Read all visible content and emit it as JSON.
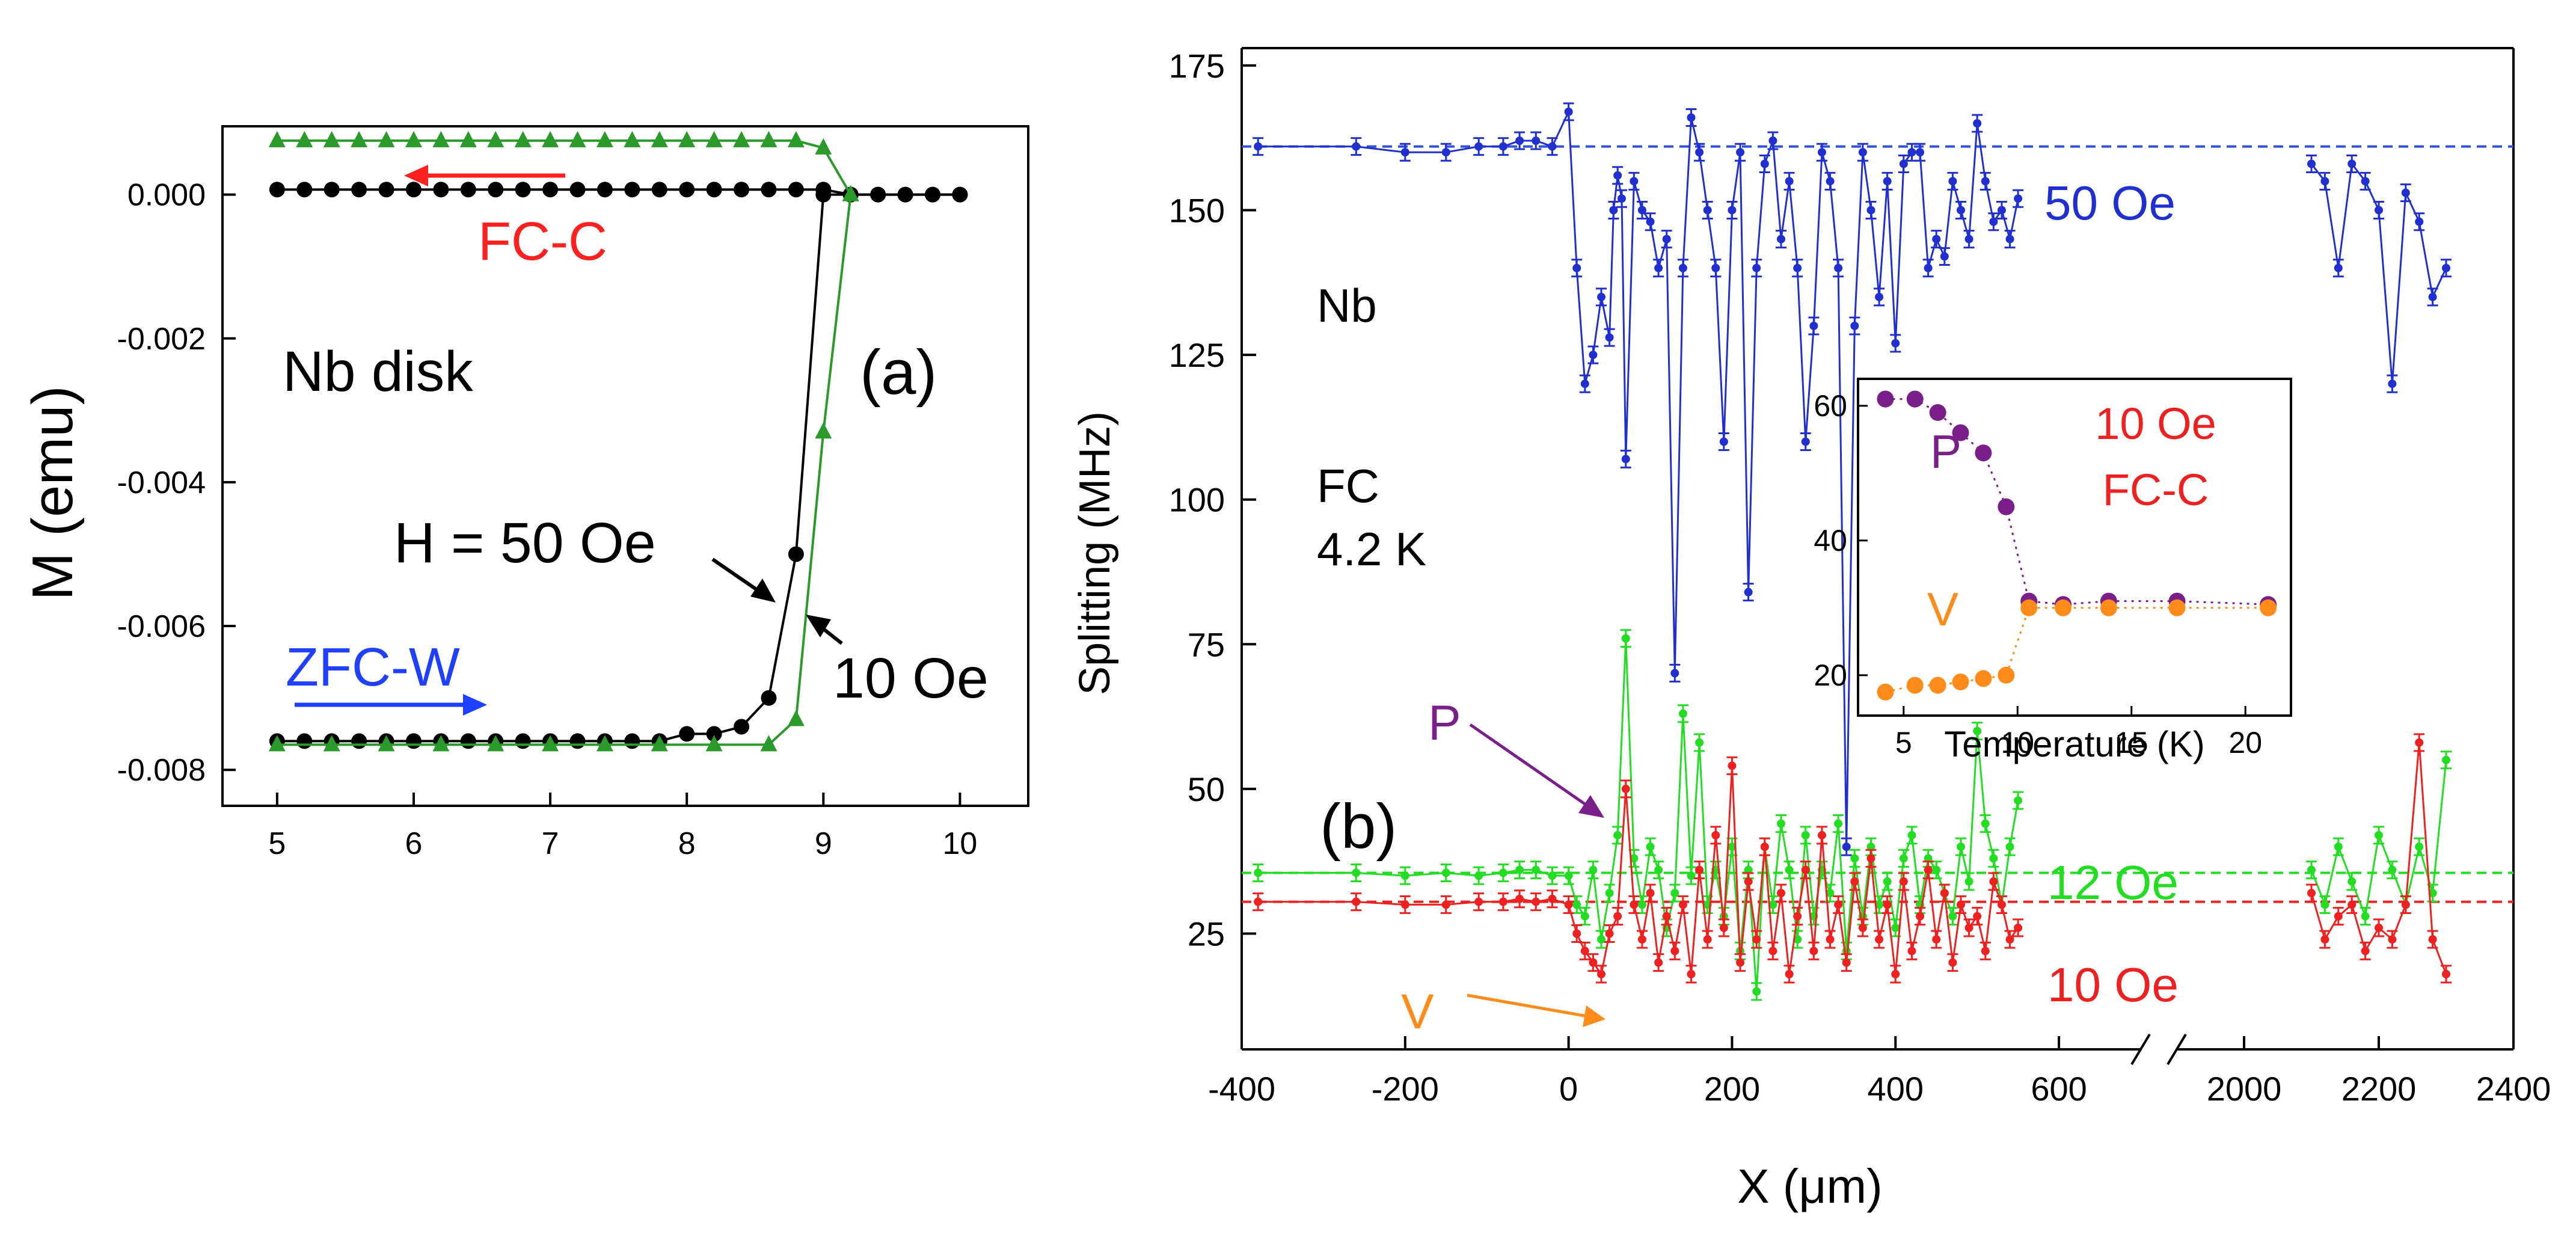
{
  "chart_data": [
    {
      "panel": "a",
      "type": "line",
      "panel_label": "(a)",
      "xlabel": "",
      "ylabel": "M (emu)",
      "xlim": [
        4.6,
        10.5
      ],
      "ylim": [
        -0.0085,
        0.00095
      ],
      "x_ticks": [
        5,
        6,
        7,
        8,
        9,
        10
      ],
      "y_ticks": [
        0.0,
        -0.002,
        -0.004,
        -0.006,
        -0.008
      ],
      "y_tick_labels": [
        "0.000",
        "-0.002",
        "-0.004",
        "-0.006",
        "-0.008"
      ],
      "annotations": {
        "sample": "Nb disk",
        "fc": "FC-C",
        "zfc": "ZFC-W",
        "h50": "H = 50 Oe",
        "h10": "10 Oe"
      },
      "colors": {
        "fc": "#ff2020",
        "zfc": "#2040ff",
        "black": "#000000",
        "green": "#2a9a2a"
      },
      "series": [
        {
          "name": "",
          "field": "50 Oe",
          "branch": "FC-C",
          "color": "#000000",
          "marker": "circle",
          "x": [
            5.0,
            5.2,
            5.4,
            5.6,
            5.8,
            6.0,
            6.2,
            6.4,
            6.6,
            6.8,
            7.0,
            7.2,
            7.4,
            7.6,
            7.8,
            8.0,
            8.2,
            8.4,
            8.6,
            8.8,
            9.0,
            9.2,
            9.4,
            9.6,
            9.8,
            10.0
          ],
          "values": [
            7e-05,
            7e-05,
            7e-05,
            7e-05,
            7e-05,
            7e-05,
            7e-05,
            7e-05,
            7e-05,
            7e-05,
            7e-05,
            7e-05,
            7e-05,
            7e-05,
            7e-05,
            7e-05,
            7e-05,
            7e-05,
            7e-05,
            7e-05,
            7e-05,
            0.0,
            0.0,
            0.0,
            0.0,
            0.0
          ]
        },
        {
          "name": "",
          "field": "50 Oe",
          "branch": "ZFC-W",
          "color": "#000000",
          "marker": "circle",
          "x": [
            5.0,
            5.2,
            5.4,
            5.6,
            5.8,
            6.0,
            6.2,
            6.4,
            6.6,
            6.8,
            7.0,
            7.2,
            7.4,
            7.6,
            7.8,
            8.0,
            8.2,
            8.4,
            8.6,
            8.8,
            9.0,
            9.2,
            9.4,
            9.6,
            9.8,
            10.0
          ],
          "values": [
            -0.0076,
            -0.0076,
            -0.0076,
            -0.0076,
            -0.0076,
            -0.0076,
            -0.0076,
            -0.0076,
            -0.0076,
            -0.0076,
            -0.0076,
            -0.0076,
            -0.0076,
            -0.0076,
            -0.0076,
            -0.0075,
            -0.0075,
            -0.0074,
            -0.007,
            -0.005,
            0.0,
            0.0,
            0.0,
            0.0,
            0.0,
            0.0
          ]
        },
        {
          "name": "",
          "field": "10 Oe",
          "branch": "FC-C",
          "color": "#2a9a2a",
          "marker": "triangle",
          "x": [
            5.0,
            5.2,
            5.4,
            5.6,
            5.8,
            6.0,
            6.2,
            6.4,
            6.6,
            6.8,
            7.0,
            7.2,
            7.4,
            7.6,
            7.8,
            8.0,
            8.2,
            8.4,
            8.6,
            8.8,
            9.0,
            9.2
          ],
          "values": [
            0.00075,
            0.00075,
            0.00075,
            0.00075,
            0.00075,
            0.00075,
            0.00075,
            0.00075,
            0.00075,
            0.00075,
            0.00075,
            0.00075,
            0.00075,
            0.00075,
            0.00075,
            0.00075,
            0.00075,
            0.00075,
            0.00075,
            0.00075,
            0.00065,
            0.0
          ]
        },
        {
          "name": "",
          "field": "10 Oe",
          "branch": "ZFC-W",
          "color": "#2a9a2a",
          "marker": "triangle",
          "x": [
            5.0,
            5.4,
            5.8,
            6.2,
            6.6,
            7.0,
            7.4,
            7.8,
            8.2,
            8.6,
            8.8,
            9.0,
            9.2
          ],
          "values": [
            -0.00765,
            -0.00765,
            -0.00765,
            -0.00765,
            -0.00765,
            -0.00765,
            -0.00765,
            -0.00765,
            -0.00765,
            -0.00765,
            -0.0073,
            -0.0033,
            0.0
          ]
        }
      ]
    },
    {
      "panel": "b",
      "type": "line",
      "panel_label": "(b)",
      "xlabel": "X (μm)",
      "ylabel": "Splitting (MHz)",
      "ylim": [
        5,
        178
      ],
      "x_ticks": [
        -400,
        -200,
        0,
        200,
        400,
        600,
        2000,
        2200,
        2400
      ],
      "x_tick_labels": [
        "-400",
        "-200",
        "0",
        "200",
        "400",
        "600",
        "2000",
        "2200",
        "2400"
      ],
      "y_ticks": [
        25,
        50,
        75,
        100,
        125,
        150,
        175
      ],
      "axis_break": {
        "left_range": [
          -400,
          700
        ],
        "right_range": [
          1900,
          2400
        ]
      },
      "annotations": {
        "material": "Nb",
        "condition_line1": "FC",
        "condition_line2": "4.2 K",
        "label_50": "50 Oe",
        "label_12": "12 Oe",
        "label_10": "10 Oe",
        "label_p": "P",
        "label_v": "V"
      },
      "reference_lines": [
        {
          "field": "50 Oe",
          "y": 161,
          "color": "#3050e0"
        },
        {
          "field": "12 Oe",
          "y": 35.5,
          "color": "#22dd22"
        },
        {
          "field": "10 Oe",
          "y": 30.5,
          "color": "#ee2020"
        }
      ],
      "series": [
        {
          "name": "50 Oe",
          "color": "#2030d0",
          "x": [
            -380,
            -260,
            -200,
            -150,
            -110,
            -80,
            -60,
            -40,
            -20,
            0,
            10,
            20,
            30,
            40,
            50,
            55,
            60,
            65,
            70,
            80,
            90,
            100,
            110,
            120,
            130,
            140,
            150,
            160,
            170,
            180,
            190,
            200,
            210,
            220,
            230,
            240,
            250,
            260,
            270,
            280,
            290,
            300,
            310,
            320,
            330,
            340,
            350,
            360,
            370,
            380,
            390,
            400,
            410,
            420,
            430,
            440,
            450,
            460,
            470,
            480,
            490,
            500,
            510,
            520,
            530,
            540,
            550,
            2100,
            2120,
            2140,
            2160,
            2180,
            2200,
            2220,
            2240,
            2260,
            2280,
            2300
          ],
          "values": [
            161,
            161,
            160,
            160,
            161,
            161,
            162,
            162,
            161,
            167,
            140,
            120,
            125,
            135,
            128,
            150,
            156,
            152,
            107,
            155,
            150,
            148,
            140,
            145,
            70,
            140,
            166,
            160,
            150,
            140,
            110,
            150,
            160,
            84,
            140,
            158,
            162,
            145,
            155,
            140,
            110,
            130,
            160,
            155,
            140,
            40,
            130,
            160,
            150,
            135,
            155,
            127,
            158,
            160,
            160,
            140,
            145,
            142,
            155,
            150,
            145,
            165,
            155,
            148,
            150,
            145,
            152,
            158,
            155,
            140,
            158,
            155,
            150,
            120,
            153,
            148,
            135,
            140
          ]
        },
        {
          "name": "12 Oe",
          "color": "#22dd22",
          "x": [
            -380,
            -260,
            -200,
            -150,
            -110,
            -80,
            -60,
            -40,
            -20,
            0,
            10,
            20,
            30,
            40,
            50,
            60,
            70,
            80,
            90,
            100,
            110,
            120,
            130,
            140,
            150,
            160,
            170,
            180,
            190,
            200,
            210,
            220,
            230,
            240,
            250,
            260,
            270,
            280,
            290,
            300,
            310,
            320,
            330,
            340,
            350,
            360,
            370,
            380,
            390,
            400,
            410,
            420,
            430,
            440,
            450,
            460,
            470,
            480,
            490,
            500,
            510,
            520,
            530,
            540,
            550,
            2100,
            2120,
            2140,
            2160,
            2180,
            2200,
            2220,
            2240,
            2260,
            2280,
            2300
          ],
          "values": [
            35.5,
            35.5,
            35,
            35.5,
            35,
            35.5,
            36,
            36,
            35,
            35,
            30,
            28,
            36,
            24,
            32,
            42,
            76,
            38,
            30,
            40,
            36,
            26,
            32,
            63,
            35,
            58,
            30,
            36,
            28,
            40,
            22,
            36,
            15,
            40,
            30,
            44,
            36,
            24,
            42,
            28,
            36,
            32,
            44,
            22,
            38,
            28,
            40,
            30,
            34,
            26,
            38,
            42,
            30,
            38,
            36,
            32,
            28,
            40,
            34,
            60,
            44,
            38,
            30,
            40,
            48,
            36,
            30,
            40,
            34,
            28,
            42,
            36,
            30,
            40,
            32,
            55
          ]
        },
        {
          "name": "10 Oe",
          "color": "#ee2020",
          "x": [
            -380,
            -260,
            -200,
            -150,
            -110,
            -80,
            -60,
            -40,
            -20,
            0,
            10,
            20,
            30,
            40,
            50,
            60,
            70,
            80,
            90,
            100,
            110,
            120,
            130,
            140,
            150,
            160,
            170,
            180,
            190,
            200,
            210,
            220,
            230,
            240,
            250,
            260,
            270,
            280,
            290,
            300,
            310,
            320,
            330,
            340,
            350,
            360,
            370,
            380,
            390,
            400,
            410,
            420,
            430,
            440,
            450,
            460,
            470,
            480,
            490,
            500,
            510,
            520,
            530,
            540,
            550,
            2100,
            2120,
            2140,
            2160,
            2180,
            2200,
            2220,
            2240,
            2260,
            2280,
            2300
          ],
          "values": [
            30.5,
            30.5,
            30,
            30,
            30.5,
            30.5,
            31,
            30.5,
            31,
            30,
            25,
            22,
            20,
            18,
            25,
            28,
            50,
            30,
            24,
            32,
            20,
            28,
            22,
            30,
            18,
            36,
            24,
            42,
            26,
            54,
            20,
            34,
            24,
            40,
            22,
            32,
            18,
            28,
            36,
            22,
            42,
            24,
            30,
            20,
            34,
            26,
            38,
            24,
            30,
            18,
            34,
            22,
            28,
            36,
            24,
            32,
            20,
            30,
            26,
            28,
            22,
            34,
            30,
            24,
            26,
            32,
            24,
            28,
            30,
            22,
            26,
            24,
            30,
            58,
            24,
            18
          ]
        }
      ]
    },
    {
      "panel": "b-inset",
      "type": "scatter",
      "xlabel": "Temperature (K)",
      "ylabel": "",
      "xlim": [
        3,
        22
      ],
      "ylim": [
        14,
        64
      ],
      "x_ticks": [
        5,
        10,
        15,
        20
      ],
      "y_ticks": [
        20,
        40,
        60
      ],
      "annotations": {
        "p": "P",
        "v": "V",
        "field": "10 Oe",
        "mode": "FC-C"
      },
      "series": [
        {
          "name": "P",
          "color": "#7a1f8a",
          "x": [
            4.2,
            5.5,
            6.5,
            7.5,
            8.5,
            9.5,
            10.5,
            12,
            14,
            17,
            21
          ],
          "values": [
            61,
            61,
            59,
            56,
            53,
            45,
            31,
            30.5,
            31,
            31,
            30.5
          ]
        },
        {
          "name": "V",
          "color": "#ff8c1a",
          "x": [
            4.2,
            5.5,
            6.5,
            7.5,
            8.5,
            9.5,
            10.5,
            12,
            14,
            17,
            21
          ],
          "values": [
            17.5,
            18.5,
            18.5,
            19,
            19.5,
            20,
            30,
            30,
            30,
            30,
            30
          ]
        }
      ]
    }
  ]
}
